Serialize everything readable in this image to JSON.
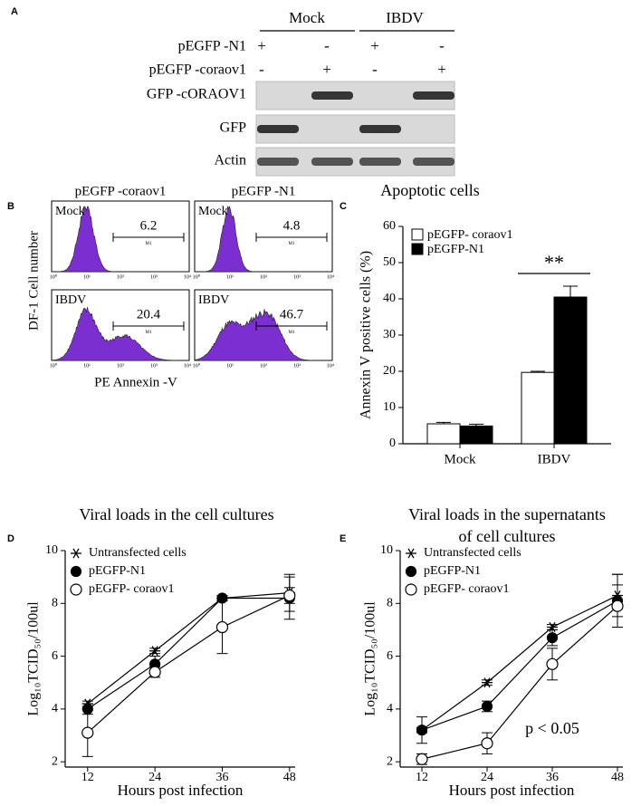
{
  "blot": {
    "label": "A",
    "groups": [
      "Mock",
      "IBDV"
    ],
    "rows": [
      {
        "name": "pEGFP -N1",
        "signs": [
          "+",
          "-",
          "+",
          "-"
        ]
      },
      {
        "name": "pEGFP -coraov1",
        "signs": [
          "-",
          "+",
          "-",
          "+"
        ]
      }
    ],
    "bands": [
      "GFP -cORAOV1",
      "GFP",
      "Actin"
    ]
  },
  "flow": {
    "label": "B",
    "y_label": "DF-1 Cell number",
    "x_label": "PE Annexin -V",
    "columns": [
      "pEGFP -coraov1",
      "pEGFP -N1"
    ],
    "rows": [
      "Mock",
      "IBDV"
    ],
    "percent": [
      [
        6.2,
        4.8
      ],
      [
        20.4,
        46.7
      ]
    ],
    "gate": "M1",
    "x_tick_labels": [
      "10⁰",
      "10¹",
      "10²",
      "10³",
      "10⁴"
    ]
  },
  "chart_data": [
    {
      "type": "bar",
      "label": "C",
      "title": "Apoptotic cells",
      "y_label": "Annexin  V positive cells (%)",
      "categories": [
        "Mock",
        "IBDV"
      ],
      "series": [
        {
          "name": "pEGFP- coraov1",
          "color": "#ffffff",
          "values": [
            5.5,
            19.7
          ],
          "errors": [
            0.4,
            0.3
          ]
        },
        {
          "name": "pEGFP-N1",
          "color": "#000000",
          "values": [
            4.9,
            40.5
          ],
          "errors": [
            0.5,
            3
          ]
        }
      ],
      "ylim": [
        0,
        60
      ],
      "yticks": [
        0,
        10,
        20,
        30,
        40,
        50,
        60
      ],
      "annotation": "**",
      "legend": "upper left"
    },
    {
      "type": "line",
      "label": "D",
      "title": "Viral loads in the cell cultures",
      "x_label": "Hours post infection",
      "y_label": "Log₁₀TCID₅₀/100ul",
      "x": [
        12,
        24,
        36,
        48
      ],
      "series": [
        {
          "name": "Untransfected cells",
          "color": "#000000",
          "marker": "asterisk",
          "values": [
            4.2,
            6.2,
            8.2,
            8.4
          ],
          "errors": [
            0.1,
            0.1,
            0.1,
            0.7
          ]
        },
        {
          "name": "pEGFP-N1",
          "color": "#000000",
          "marker": "filled",
          "values": [
            4.0,
            5.7,
            8.2,
            8.2
          ],
          "errors": [
            0.2,
            0.3,
            0.1,
            0.8
          ]
        },
        {
          "name": "pEGFP- coraov1",
          "color": "#000000",
          "marker": "open",
          "values": [
            3.1,
            5.4,
            7.1,
            8.3
          ],
          "errors": [
            0.9,
            0.2,
            1.0,
            0.3
          ]
        }
      ],
      "xlim": [
        8,
        49
      ],
      "xticks": [
        12,
        24,
        36,
        48
      ],
      "ylim": [
        1.8,
        10
      ],
      "yticks": [
        2,
        4,
        6,
        8,
        10
      ],
      "legend": "upper left"
    },
    {
      "type": "line",
      "label": "E",
      "title": [
        "Viral loads in the supernatants",
        "of cell cultures"
      ],
      "x_label": "Hours post infection",
      "y_label": "Log₁₀TCID₅₀/100ul",
      "x": [
        12,
        24,
        36,
        48
      ],
      "series": [
        {
          "name": "Untransfected cells",
          "color": "#000000",
          "marker": "asterisk",
          "values": [
            3.2,
            5.0,
            7.1,
            8.3
          ],
          "errors": [
            0.1,
            0.1,
            0.1,
            0.8
          ]
        },
        {
          "name": "pEGFP-N1",
          "color": "#000000",
          "marker": "filled",
          "values": [
            3.2,
            4.1,
            6.7,
            8.1
          ],
          "errors": [
            0.5,
            0.2,
            0.3,
            1.0
          ]
        },
        {
          "name": "pEGFP- coraov1",
          "color": "#000000",
          "marker": "open",
          "values": [
            2.1,
            2.7,
            5.7,
            7.9
          ],
          "errors": [
            0.2,
            0.4,
            0.6,
            0.8
          ]
        }
      ],
      "xlim": [
        8,
        49
      ],
      "xticks": [
        12,
        24,
        36,
        48
      ],
      "ylim": [
        1.8,
        10
      ],
      "yticks": [
        2,
        4,
        6,
        8,
        10
      ],
      "annotation": "p < 0.05",
      "legend": "upper left"
    }
  ]
}
